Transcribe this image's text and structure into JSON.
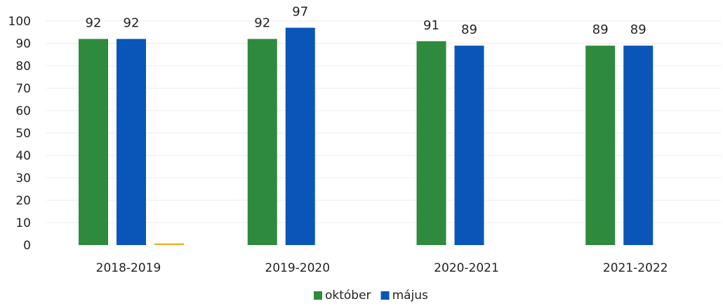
{
  "chart_data": {
    "type": "bar",
    "categories": [
      "2018-2019",
      "2019-2020",
      "2020-2021",
      "2021-2022"
    ],
    "series": [
      {
        "name": "október",
        "color": "#2e8b3e",
        "values": [
          92,
          92,
          91,
          89
        ]
      },
      {
        "name": "május",
        "color": "#0a56b8",
        "values": [
          92,
          97,
          89,
          89
        ]
      },
      {
        "name": "",
        "color": "#f0b429",
        "values": [
          0.6,
          null,
          null,
          null
        ]
      }
    ],
    "data_labels": [
      [
        "92",
        "92",
        "91",
        "89"
      ],
      [
        "92",
        "97",
        "89",
        "89"
      ]
    ],
    "ylim": [
      0,
      100
    ],
    "yticks": [
      0,
      10,
      20,
      30,
      40,
      50,
      60,
      70,
      80,
      90,
      100
    ],
    "grid": true,
    "legend_position": "bottom"
  }
}
